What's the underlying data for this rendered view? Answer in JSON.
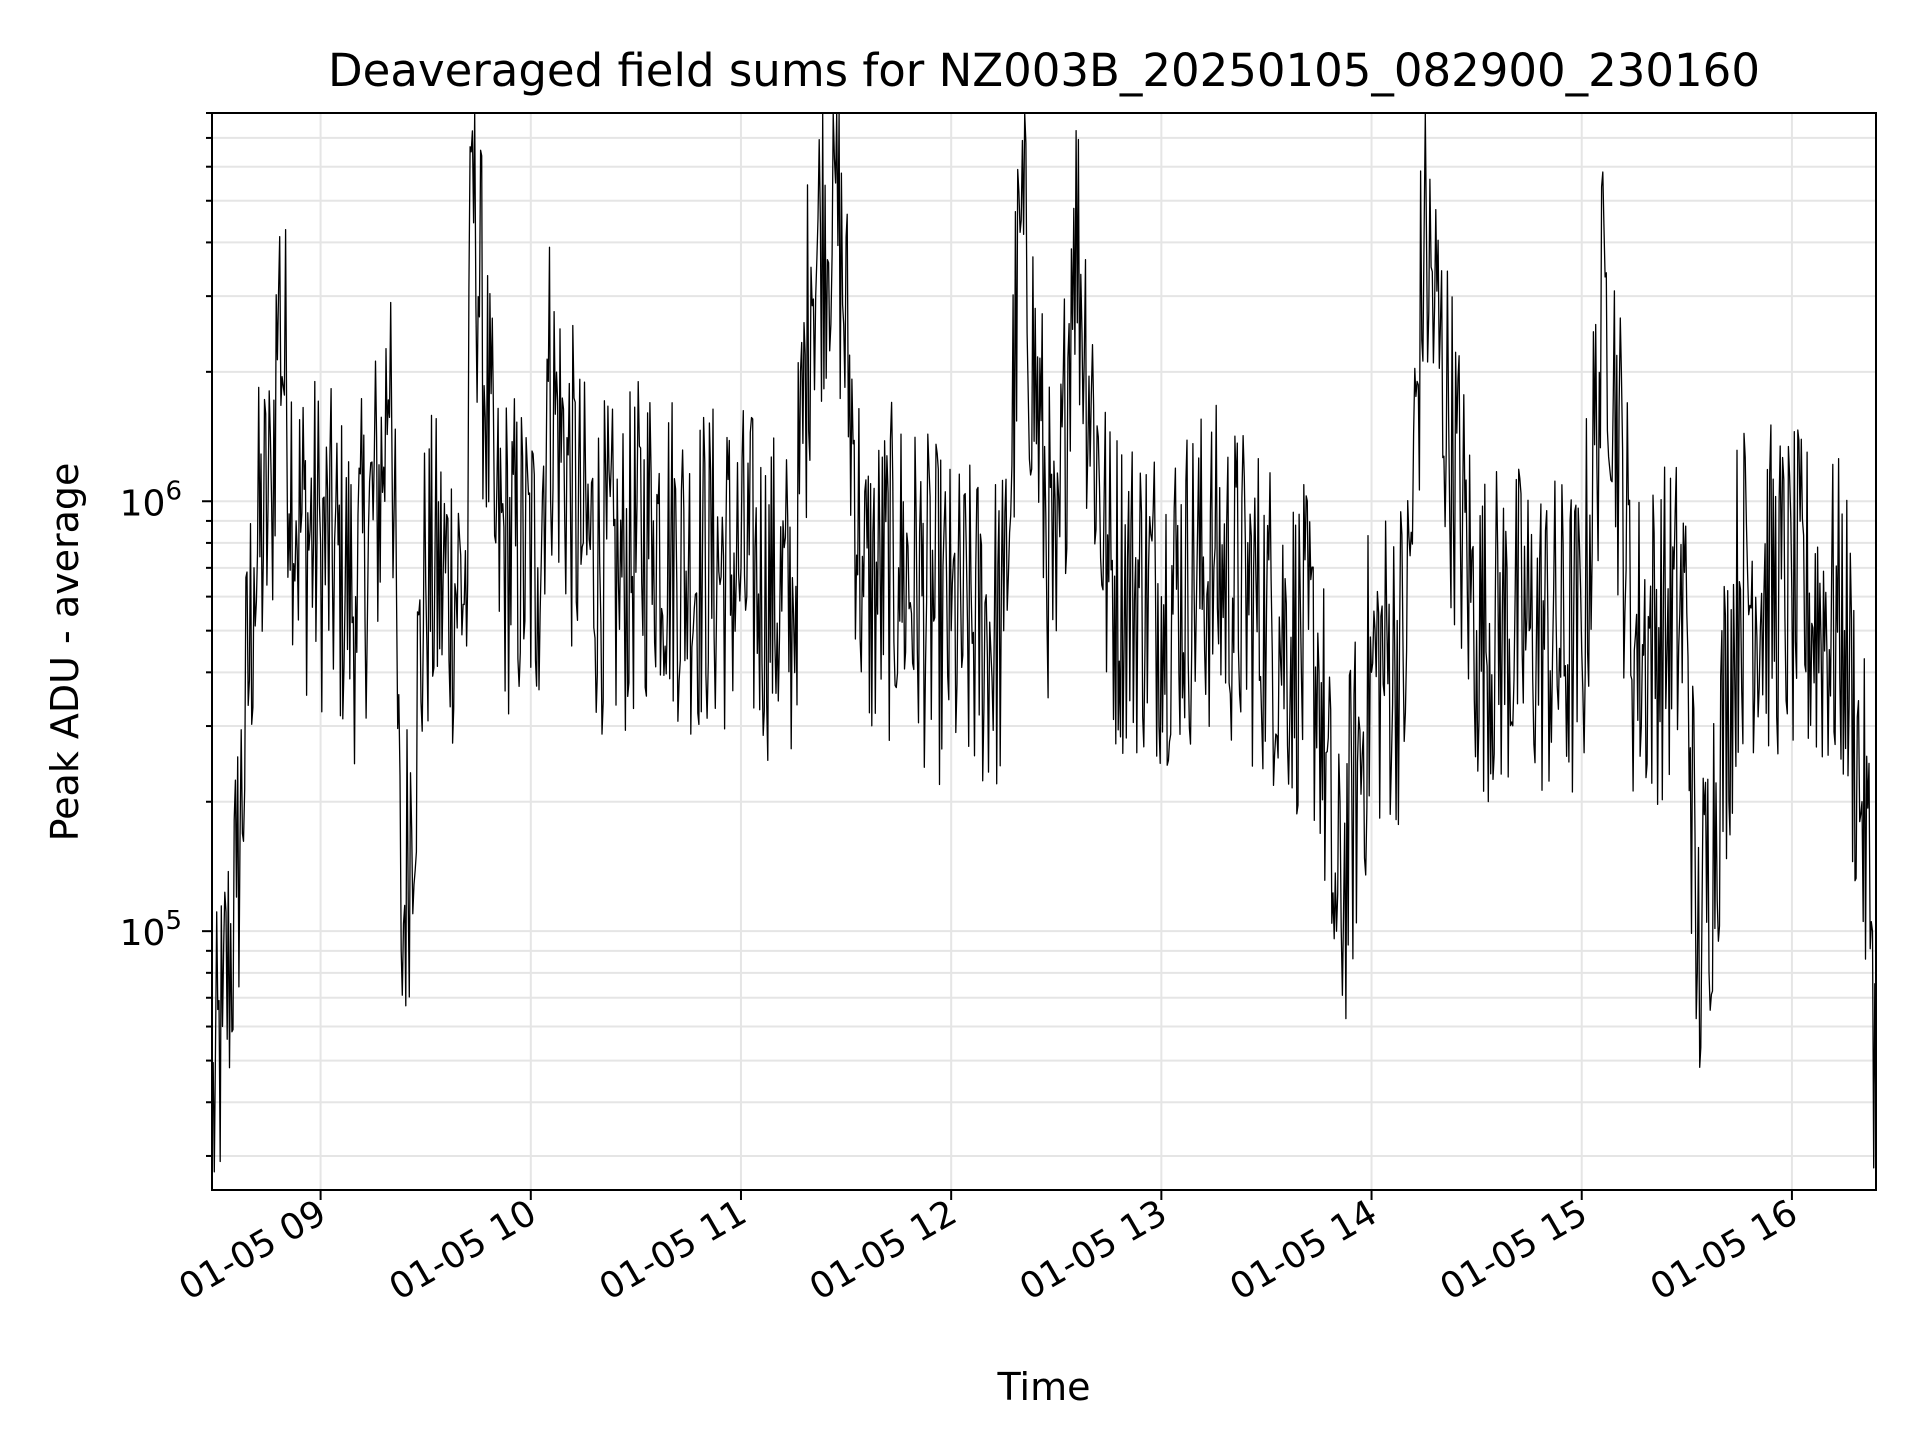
{
  "chart_data": {
    "type": "line",
    "title": "Deaveraged field sums for NZ003B_20250105_082900_230160",
    "xlabel": "Time",
    "ylabel": "Peak ADU - average",
    "x_ticks": [
      "01-05 09",
      "01-05 10",
      "01-05 11",
      "01-05 12",
      "01-05 13",
      "01-05 14",
      "01-05 15",
      "01-05 16"
    ],
    "y_ticks": [
      {
        "base": "10",
        "exp": "5",
        "value": 100000
      },
      {
        "base": "10",
        "exp": "6",
        "value": 1000000
      }
    ],
    "y_scale": "log",
    "ylim": [
      25000,
      8000000
    ],
    "xlim": [
      "2025-01-05 08:29",
      "2025-01-05 16:24"
    ],
    "grid": true,
    "line_color": "#000000",
    "series": [
      {
        "x": [
          "2025-01-05 08:29",
          "2025-01-05 08:32",
          "2025-01-05 08:36",
          "2025-01-05 08:41",
          "2025-01-05 08:46",
          "2025-01-05 08:48",
          "2025-01-05 08:53",
          "2025-01-05 09:00",
          "2025-01-05 09:10",
          "2025-01-05 09:18",
          "2025-01-05 09:20",
          "2025-01-05 09:23",
          "2025-01-05 09:30",
          "2025-01-05 09:42",
          "2025-01-05 09:43",
          "2025-01-05 09:50",
          "2025-01-05 10:02",
          "2025-01-05 10:05",
          "2025-01-05 10:15",
          "2025-01-05 10:25",
          "2025-01-05 10:35",
          "2025-01-05 10:45",
          "2025-01-05 11:00",
          "2025-01-05 11:15",
          "2025-01-05 11:20",
          "2025-01-05 11:27",
          "2025-01-05 11:35",
          "2025-01-05 11:45",
          "2025-01-05 12:00",
          "2025-01-05 12:15",
          "2025-01-05 12:20",
          "2025-01-05 12:30",
          "2025-01-05 12:35",
          "2025-01-05 12:45",
          "2025-01-05 13:00",
          "2025-01-05 13:15",
          "2025-01-05 13:30",
          "2025-01-05 13:45",
          "2025-01-05 13:50",
          "2025-01-05 14:00",
          "2025-01-05 14:10",
          "2025-01-05 14:15",
          "2025-01-05 14:30",
          "2025-01-05 14:45",
          "2025-01-05 15:00",
          "2025-01-05 15:07",
          "2025-01-05 15:15",
          "2025-01-05 15:30",
          "2025-01-05 15:33",
          "2025-01-05 15:45",
          "2025-01-05 16:00",
          "2025-01-05 16:15",
          "2025-01-05 16:20",
          "2025-01-05 16:23",
          "2025-01-05 16:24"
        ],
        "y": [
          35000,
          60000,
          120000,
          700000,
          1000000,
          3100000,
          900000,
          800000,
          600000,
          1200000,
          2900000,
          90000,
          650000,
          650000,
          6500000,
          800000,
          700000,
          1900000,
          800000,
          650000,
          900000,
          700000,
          700000,
          550000,
          3500000,
          5500000,
          600000,
          700000,
          500000,
          500000,
          4500000,
          500000,
          4800000,
          650000,
          600000,
          700000,
          550000,
          400000,
          100000,
          400000,
          450000,
          4200000,
          500000,
          500000,
          450000,
          3400000,
          450000,
          550000,
          80000,
          650000,
          600000,
          500000,
          200000,
          100000,
          35000
        ]
      }
    ]
  }
}
